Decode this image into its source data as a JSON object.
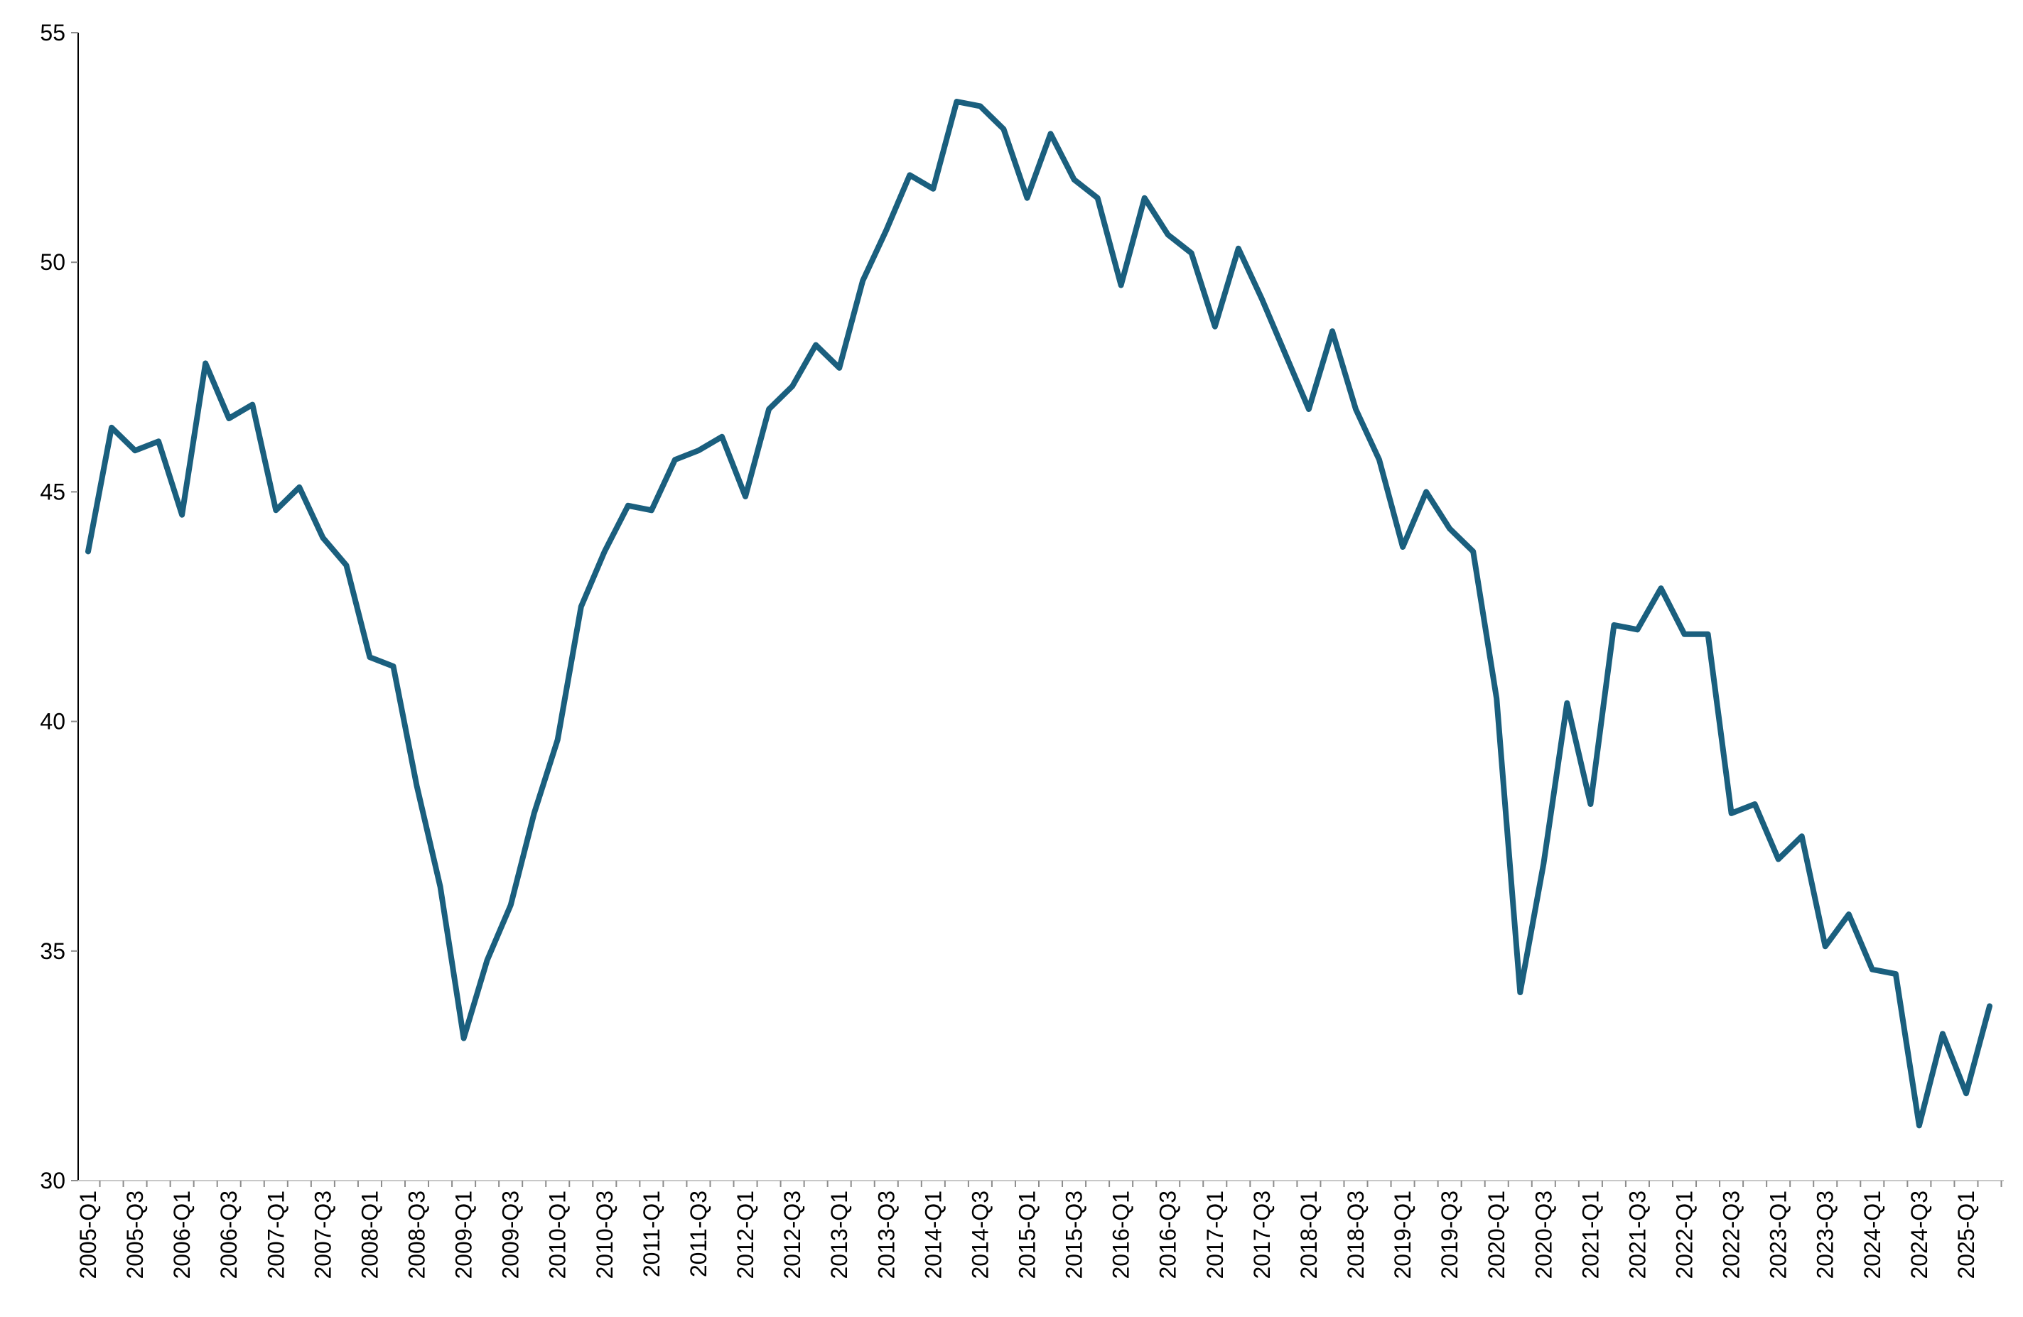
{
  "chart_data": {
    "type": "line",
    "title": "",
    "xlabel": "",
    "ylabel": "",
    "ylim": [
      30,
      55
    ],
    "yticks": [
      30,
      35,
      40,
      45,
      50,
      55
    ],
    "y_tick_labels": [
      "30",
      "35",
      "40",
      "45",
      "50",
      "55"
    ],
    "grid": false,
    "legend": "none",
    "x": [
      "2005-Q1",
      "2005-Q2",
      "2005-Q3",
      "2005-Q4",
      "2006-Q1",
      "2006-Q2",
      "2006-Q3",
      "2006-Q4",
      "2007-Q1",
      "2007-Q2",
      "2007-Q3",
      "2007-Q4",
      "2008-Q1",
      "2008-Q2",
      "2008-Q3",
      "2008-Q4",
      "2009-Q1",
      "2009-Q2",
      "2009-Q3",
      "2009-Q4",
      "2010-Q1",
      "2010-Q2",
      "2010-Q3",
      "2010-Q4",
      "2011-Q1",
      "2011-Q2",
      "2011-Q3",
      "2011-Q4",
      "2012-Q1",
      "2012-Q2",
      "2012-Q3",
      "2012-Q4",
      "2013-Q1",
      "2013-Q2",
      "2013-Q3",
      "2013-Q4",
      "2014-Q1",
      "2014-Q2",
      "2014-Q3",
      "2014-Q4",
      "2015-Q1",
      "2015-Q2",
      "2015-Q3",
      "2015-Q4",
      "2016-Q1",
      "2016-Q2",
      "2016-Q3",
      "2016-Q4",
      "2017-Q1",
      "2017-Q2",
      "2017-Q3",
      "2017-Q4",
      "2018-Q1",
      "2018-Q2",
      "2018-Q3",
      "2018-Q4",
      "2019-Q1",
      "2019-Q2",
      "2019-Q3",
      "2019-Q4",
      "2020-Q1",
      "2020-Q2",
      "2020-Q3",
      "2020-Q4",
      "2021-Q1",
      "2021-Q2",
      "2021-Q3",
      "2021-Q4",
      "2022-Q1",
      "2022-Q2",
      "2022-Q3",
      "2022-Q4",
      "2023-Q1",
      "2023-Q2",
      "2023-Q3",
      "2023-Q4",
      "2024-Q1",
      "2024-Q2",
      "2024-Q3",
      "2024-Q4",
      "2025-Q1",
      "2025-Q2"
    ],
    "x_tick_labels": [
      "2005-Q1",
      "2005-Q3",
      "2006-Q1",
      "2006-Q3",
      "2007-Q1",
      "2007-Q3",
      "2008-Q1",
      "2008-Q3",
      "2009-Q1",
      "2009-Q3",
      "2010-Q1",
      "2010-Q3",
      "2011-Q1",
      "2011-Q3",
      "2012-Q1",
      "2012-Q3",
      "2013-Q1",
      "2013-Q3",
      "2014-Q1",
      "2014-Q3",
      "2015-Q1",
      "2015-Q3",
      "2016-Q1",
      "2016-Q3",
      "2017-Q1",
      "2017-Q3",
      "2018-Q1",
      "2018-Q3",
      "2019-Q1",
      "2019-Q3",
      "2020-Q1",
      "2020-Q3",
      "2021-Q1",
      "2021-Q3",
      "2022-Q1",
      "2022-Q3",
      "2023-Q1",
      "2023-Q3",
      "2024-Q1",
      "2024-Q3",
      "2025-Q1"
    ],
    "series": [
      {
        "color": "#1a5f7e",
        "values": [
          43.7,
          46.4,
          45.9,
          46.1,
          44.5,
          47.8,
          46.6,
          46.9,
          44.6,
          45.1,
          44.0,
          43.4,
          41.4,
          41.2,
          38.6,
          36.4,
          33.1,
          34.8,
          36.0,
          38.0,
          39.6,
          42.5,
          43.7,
          44.7,
          44.6,
          45.7,
          45.9,
          46.2,
          44.9,
          46.8,
          47.3,
          48.2,
          47.7,
          49.6,
          50.7,
          51.9,
          51.6,
          53.5,
          53.4,
          52.9,
          51.4,
          52.8,
          51.8,
          51.4,
          49.5,
          51.4,
          50.6,
          50.2,
          48.6,
          50.3,
          49.2,
          48.0,
          46.8,
          48.5,
          46.8,
          45.7,
          43.8,
          45.0,
          44.2,
          43.7,
          40.5,
          34.1,
          36.9,
          40.4,
          38.2,
          42.1,
          42.0,
          42.9,
          41.9,
          41.9,
          38.0,
          38.2,
          37.0,
          37.5,
          35.1,
          35.8,
          34.6,
          34.5,
          31.2,
          33.2,
          31.9,
          33.8
        ]
      }
    ]
  }
}
